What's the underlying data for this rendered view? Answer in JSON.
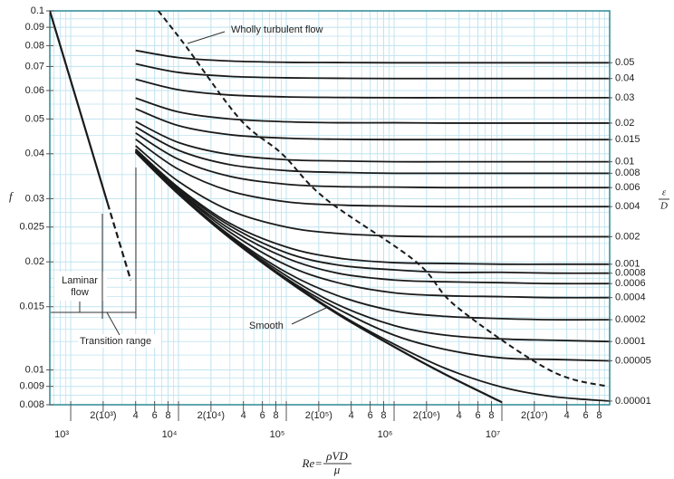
{
  "chart_data": {
    "type": "line",
    "log_x": true,
    "log_y": true,
    "grid": true,
    "ylabel": "f",
    "y2label": {
      "num": "ε",
      "den": "D"
    },
    "xlabel": {
      "lhs": "Re=",
      "num": "ρVD",
      "den": "μ"
    },
    "xlim": [
      640,
      100000000
    ],
    "ylim": [
      0.008,
      0.1
    ],
    "yticks": [
      0.1,
      0.09,
      0.08,
      0.07,
      0.06,
      0.05,
      0.04,
      0.03,
      0.025,
      0.02,
      0.015,
      0.01,
      0.009,
      0.008
    ],
    "xticks": [
      {
        "value": 1000,
        "label": "10³"
      },
      {
        "value": 2000,
        "label": "2(10³)"
      },
      {
        "value": 4000,
        "label": "4"
      },
      {
        "value": 6000,
        "label": "6"
      },
      {
        "value": 8000,
        "label": "8"
      },
      {
        "value": 10000,
        "label": "10⁴"
      },
      {
        "value": 20000,
        "label": "2(10⁴)"
      },
      {
        "value": 40000,
        "label": "4"
      },
      {
        "value": 60000,
        "label": "6"
      },
      {
        "value": 80000,
        "label": "8"
      },
      {
        "value": 100000,
        "label": "10⁵"
      },
      {
        "value": 200000,
        "label": "2(10⁵)"
      },
      {
        "value": 400000,
        "label": "4"
      },
      {
        "value": 600000,
        "label": "6"
      },
      {
        "value": 800000,
        "label": "8"
      },
      {
        "value": 1000000,
        "label": "10⁶"
      },
      {
        "value": 2000000,
        "label": "2(10⁶)"
      },
      {
        "value": 4000000,
        "label": "4"
      },
      {
        "value": 6000000,
        "label": "6"
      },
      {
        "value": 8000000,
        "label": "8"
      },
      {
        "value": 10000000,
        "label": "10⁷"
      },
      {
        "value": 20000000,
        "label": "2(10⁷)"
      },
      {
        "value": 40000000,
        "label": "4"
      },
      {
        "value": 60000000,
        "label": "6"
      },
      {
        "value": 80000000,
        "label": "8"
      }
    ],
    "xminor": [
      700,
      800,
      900,
      3000,
      5000,
      7000,
      9000,
      30000,
      50000,
      70000,
      90000,
      300000,
      500000,
      700000,
      900000,
      3000000,
      5000000,
      7000000,
      9000000,
      30000000,
      50000000,
      70000000,
      90000000
    ],
    "yminor": [
      0.0085,
      0.0095,
      0.011,
      0.012,
      0.013,
      0.014,
      0.016,
      0.017,
      0.018,
      0.019,
      0.0225,
      0.0275,
      0.035,
      0.045,
      0.055,
      0.065,
      0.075,
      0.085,
      0.095
    ],
    "x": [
      4000,
      10000,
      30000,
      100000,
      300000,
      1000000,
      3000000,
      10000000,
      30000000,
      100000000
    ],
    "series": [
      {
        "name": "0.05",
        "color": "#1a1a1a",
        "values": [
          0.0776,
          0.0741,
          0.0725,
          0.0719,
          0.0718,
          0.0717,
          0.0717,
          0.0717,
          0.0717,
          0.0717
        ]
      },
      {
        "name": "0.04",
        "color": "#1a1a1a",
        "values": [
          0.0712,
          0.0674,
          0.0657,
          0.0651,
          0.0649,
          0.0648,
          0.0648,
          0.0648,
          0.0648,
          0.0648
        ]
      },
      {
        "name": "0.03",
        "color": "#1a1a1a",
        "values": [
          0.0645,
          0.0603,
          0.0583,
          0.0576,
          0.0574,
          0.0573,
          0.0573,
          0.0573,
          0.0573,
          0.0573
        ]
      },
      {
        "name": "0.02",
        "color": "#1a1a1a",
        "values": [
          0.0572,
          0.0523,
          0.05,
          0.0491,
          0.0488,
          0.0488,
          0.0487,
          0.0487,
          0.0487,
          0.0487
        ]
      },
      {
        "name": "0.015",
        "color": "#1a1a1a",
        "values": [
          0.0534,
          0.0479,
          0.0452,
          0.0442,
          0.0439,
          0.0438,
          0.0438,
          0.0438,
          0.0438,
          0.0438
        ]
      },
      {
        "name": "0.01",
        "color": "#1a1a1a",
        "values": [
          0.0492,
          0.043,
          0.0398,
          0.0385,
          0.0382,
          0.038,
          0.038,
          0.038,
          0.038,
          0.038
        ]
      },
      {
        "name": "0.008",
        "color": "#1a1a1a",
        "values": [
          0.0475,
          0.0409,
          0.0373,
          0.0359,
          0.0355,
          0.0353,
          0.0353,
          0.0353,
          0.0353,
          0.0353
        ]
      },
      {
        "name": "0.006",
        "color": "#1a1a1a",
        "values": [
          0.0457,
          0.0386,
          0.0346,
          0.0329,
          0.0324,
          0.0323,
          0.0322,
          0.0322,
          0.0322,
          0.0322
        ]
      },
      {
        "name": "0.004",
        "color": "#1a1a1a",
        "values": [
          0.0439,
          0.0362,
          0.0315,
          0.0294,
          0.0288,
          0.0286,
          0.0285,
          0.0285,
          0.0285,
          0.0285
        ]
      },
      {
        "name": "0.002",
        "color": "#1a1a1a",
        "values": [
          0.0421,
          0.0335,
          0.0278,
          0.025,
          0.024,
          0.0236,
          0.0235,
          0.0235,
          0.0235,
          0.0235
        ]
      },
      {
        "name": "0.001",
        "color": "#1a1a1a",
        "values": [
          0.0412,
          0.0322,
          0.0256,
          0.022,
          0.0205,
          0.0199,
          0.0198,
          0.0197,
          0.0197,
          0.0197
        ]
      },
      {
        "name": "0.0008",
        "color": "#1a1a1a",
        "values": [
          0.041,
          0.0319,
          0.0252,
          0.0212,
          0.0196,
          0.019,
          0.0187,
          0.0187,
          0.0186,
          0.0186
        ]
      },
      {
        "name": "0.0006",
        "color": "#1a1a1a",
        "values": [
          0.0409,
          0.0316,
          0.0247,
          0.0205,
          0.0186,
          0.0178,
          0.0176,
          0.0175,
          0.0174,
          0.0174
        ]
      },
      {
        "name": "0.0004",
        "color": "#1a1a1a",
        "values": [
          0.0407,
          0.0314,
          0.0242,
          0.0196,
          0.0175,
          0.0164,
          0.0161,
          0.016,
          0.0159,
          0.0159
        ]
      },
      {
        "name": "0.0002",
        "color": "#1a1a1a",
        "values": [
          0.0406,
          0.0311,
          0.0237,
          0.0187,
          0.0161,
          0.0146,
          0.0141,
          0.0139,
          0.0138,
          0.0138
        ]
      },
      {
        "name": "0.0001",
        "color": "#1a1a1a",
        "values": [
          0.0405,
          0.031,
          0.0235,
          0.0183,
          0.0152,
          0.0133,
          0.0125,
          0.0122,
          0.0121,
          0.012
        ]
      },
      {
        "name": "0.00005",
        "color": "#1a1a1a",
        "values": [
          0.0404,
          0.0309,
          0.0234,
          0.018,
          0.0148,
          0.0125,
          0.0114,
          0.0108,
          0.0107,
          0.0106
        ]
      },
      {
        "name": "0.00001",
        "color": "#1a1a1a",
        "values": [
          0.0404,
          0.0309,
          0.0233,
          0.0179,
          0.0144,
          0.0118,
          0.0101,
          0.00896,
          0.00843,
          0.00819
        ]
      }
    ],
    "smooth": {
      "label": "Smooth",
      "color": "#1a1a1a",
      "values": [
        0.0404,
        0.0309,
        0.0233,
        0.0178,
        0.0143,
        0.0116,
        0.00971,
        0.00813,
        null,
        null
      ]
    },
    "laminar": {
      "color": "#1a1a1a",
      "x": [
        640,
        2200
      ],
      "values": [
        0.1,
        0.0291
      ]
    },
    "laminar_transition": {
      "color": "#1a1a1a",
      "x": [
        2200,
        3600
      ],
      "values": [
        0.0291,
        0.0178
      ]
    },
    "wholly_turbulent": {
      "label": "Wholly turbulent flow",
      "color": "#1a1a1a",
      "x": [
        6500,
        11600,
        37000,
        91000,
        230000,
        1600000,
        3800000,
        27500000,
        95000000
      ],
      "values": [
        0.1,
        0.08,
        0.05,
        0.04,
        0.03,
        0.02,
        0.015,
        0.01,
        0.009
      ]
    },
    "annotations": {
      "laminar_1": "Laminar",
      "laminar_2": "flow",
      "transition": "Transition range"
    },
    "axis_color": "#2b8a93",
    "grid_color": "#bfe3ef"
  }
}
